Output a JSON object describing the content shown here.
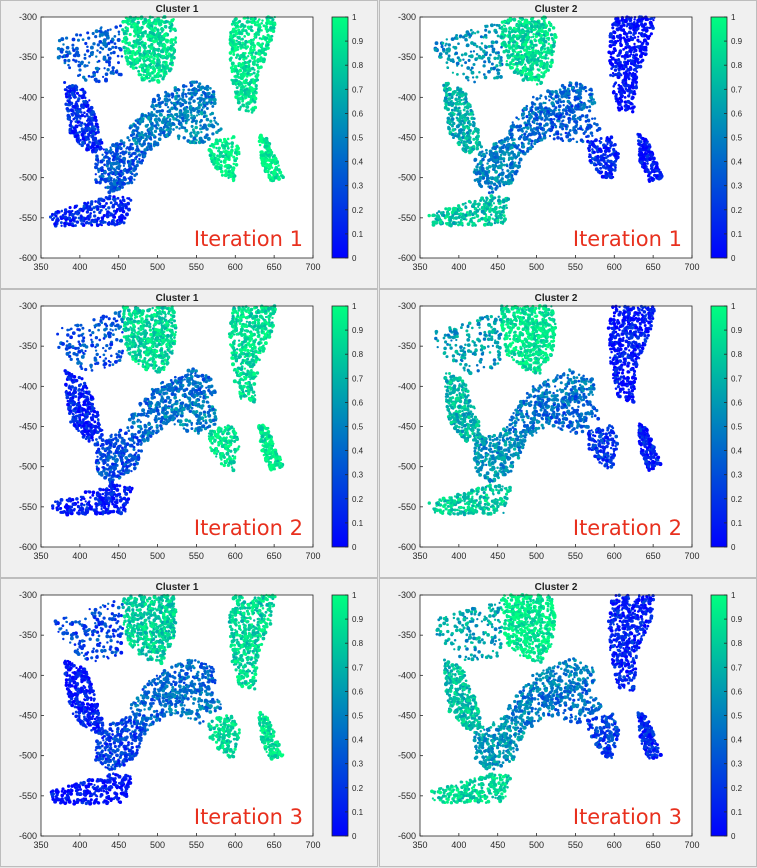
{
  "colorbar_ticks": [
    "0",
    "0.1",
    "0.2",
    "0.3",
    "0.4",
    "0.5",
    "0.6",
    "0.7",
    "0.8",
    "0.9",
    "1"
  ],
  "colors": {
    "low": "#0000ff",
    "high": "#00ff80",
    "iteration_label": "#e8301e",
    "axes_bg": "#ffffff",
    "figure_bg": "#f0f0f0"
  },
  "chart_data": [
    {
      "type": "scatter",
      "title": "Cluster 1",
      "iteration_label": "Iteration 1",
      "xlim": [
        350,
        700
      ],
      "ylim": [
        -600,
        -300
      ],
      "xticks": [
        "350",
        "400",
        "450",
        "500",
        "550",
        "600",
        "650",
        "700"
      ],
      "yticks": [
        "-300",
        "-350",
        "-400",
        "-450",
        "-500",
        "-550",
        "-600"
      ],
      "colorbar_range": [
        0,
        1
      ],
      "grid": false
    },
    {
      "type": "scatter",
      "title": "Cluster 2",
      "iteration_label": "Iteration 1",
      "xlim": [
        350,
        700
      ],
      "ylim": [
        -600,
        -300
      ],
      "xticks": [
        "350",
        "400",
        "450",
        "500",
        "550",
        "600",
        "650",
        "700"
      ],
      "yticks": [
        "-300",
        "-350",
        "-400",
        "-450",
        "-500",
        "-550",
        "-600"
      ],
      "colorbar_range": [
        0,
        1
      ],
      "grid": false
    },
    {
      "type": "scatter",
      "title": "Cluster 1",
      "iteration_label": "Iteration 2",
      "xlim": [
        350,
        700
      ],
      "ylim": [
        -600,
        -300
      ],
      "xticks": [
        "350",
        "400",
        "450",
        "500",
        "550",
        "600",
        "650",
        "700"
      ],
      "yticks": [
        "-300",
        "-350",
        "-400",
        "-450",
        "-500",
        "-550",
        "-600"
      ],
      "colorbar_range": [
        0,
        1
      ],
      "grid": false
    },
    {
      "type": "scatter",
      "title": "Cluster 2",
      "iteration_label": "Iteration 2",
      "xlim": [
        350,
        700
      ],
      "ylim": [
        -600,
        -300
      ],
      "xticks": [
        "350",
        "400",
        "450",
        "500",
        "550",
        "600",
        "650",
        "700"
      ],
      "yticks": [
        "-300",
        "-350",
        "-400",
        "-450",
        "-500",
        "-550",
        "-600"
      ],
      "colorbar_range": [
        0,
        1
      ],
      "grid": false
    },
    {
      "type": "scatter",
      "title": "Cluster 1",
      "iteration_label": "Iteration 3",
      "xlim": [
        350,
        700
      ],
      "ylim": [
        -600,
        -300
      ],
      "xticks": [
        "350",
        "400",
        "450",
        "500",
        "550",
        "600",
        "650",
        "700"
      ],
      "yticks": [
        "-300",
        "-350",
        "-400",
        "-450",
        "-500",
        "-550",
        "-600"
      ],
      "colorbar_range": [
        0,
        1
      ],
      "grid": false
    },
    {
      "type": "scatter",
      "title": "Cluster 2",
      "iteration_label": "Iteration 3",
      "xlim": [
        350,
        700
      ],
      "ylim": [
        -600,
        -300
      ],
      "xticks": [
        "350",
        "400",
        "450",
        "500",
        "550",
        "600",
        "650",
        "700"
      ],
      "yticks": [
        "-300",
        "-350",
        "-400",
        "-450",
        "-500",
        "-550",
        "-600"
      ],
      "colorbar_range": [
        0,
        1
      ],
      "grid": false
    }
  ]
}
